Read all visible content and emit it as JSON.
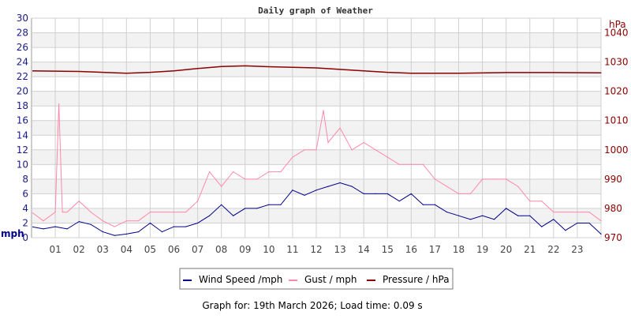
{
  "chart_data": {
    "type": "line",
    "title": "Daily graph of Weather",
    "footer": "Graph for: 19th March 2026; Load time: 0.09 s",
    "xlabel": "",
    "x_ticks": [
      "01",
      "02",
      "03",
      "04",
      "05",
      "06",
      "07",
      "08",
      "09",
      "10",
      "11",
      "12",
      "13",
      "14",
      "15",
      "16",
      "17",
      "18",
      "19",
      "20",
      "21",
      "22",
      "23"
    ],
    "xlim": [
      0,
      24
    ],
    "y_left": {
      "label": "mph",
      "lim": [
        0,
        30
      ],
      "ticks": [
        "0",
        "2",
        "4",
        "6",
        "8",
        "10",
        "12",
        "14",
        "16",
        "18",
        "20",
        "22",
        "24",
        "26",
        "28",
        "30"
      ]
    },
    "y_right": {
      "label": "hPa",
      "lim": [
        970,
        1045
      ],
      "ticks": [
        "970",
        "980",
        "990",
        "1000",
        "1010",
        "1020",
        "1030",
        "1040"
      ]
    },
    "grid": true,
    "legend": {
      "placement": "bottom",
      "entries": [
        "Wind Speed /mph",
        "Gust / mph",
        "Pressure / hPa"
      ]
    },
    "colors": {
      "wind": "#00008b",
      "gust": "#ff88aa",
      "pressure": "#8b0000",
      "band": "#f2f2f2",
      "grid": "#d0d0d0"
    },
    "series": [
      {
        "name": "Wind Speed /mph",
        "axis": "left",
        "x": [
          0,
          0.5,
          1,
          1.5,
          2,
          2.5,
          3,
          3.5,
          4,
          4.5,
          5,
          5.5,
          6,
          6.5,
          7,
          7.5,
          8,
          8.5,
          9,
          9.5,
          10,
          10.5,
          11,
          11.5,
          12,
          12.5,
          13,
          13.5,
          14,
          14.5,
          15,
          15.5,
          16,
          16.5,
          17,
          17.5,
          18,
          18.5,
          19,
          19.5,
          20,
          20.5,
          21,
          21.5,
          22,
          22.5,
          23,
          23.5,
          24
        ],
        "y": [
          1.5,
          1.2,
          1.5,
          1.2,
          2.2,
          1.8,
          0.8,
          0.3,
          0.5,
          0.8,
          2.0,
          0.8,
          1.5,
          1.5,
          2.0,
          3.0,
          4.5,
          3.0,
          4.0,
          4.0,
          4.5,
          4.5,
          6.5,
          5.8,
          6.5,
          7.0,
          7.5,
          7.0,
          6.0,
          6.0,
          6.0,
          5.0,
          6.0,
          4.5,
          4.5,
          3.5,
          3.0,
          2.5,
          3.0,
          2.5,
          4.0,
          3.0,
          3.0,
          1.5,
          2.5,
          1.0,
          2.0,
          2.0,
          0.5
        ]
      },
      {
        "name": "Gust / mph",
        "axis": "left",
        "x": [
          0,
          0.5,
          1,
          1.15,
          1.3,
          1.5,
          2,
          2.5,
          3,
          3.5,
          4,
          4.5,
          5,
          5.5,
          6,
          6.5,
          7,
          7.5,
          8,
          8.5,
          9,
          9.5,
          10,
          10.5,
          11,
          11.5,
          12,
          12.3,
          12.5,
          13,
          13.5,
          14,
          14.5,
          15,
          15.5,
          16,
          16.5,
          17,
          17.5,
          18,
          18.5,
          19,
          19.5,
          20,
          20.5,
          21,
          21.5,
          22,
          22.5,
          23,
          23.5,
          24
        ],
        "y": [
          3.5,
          2.3,
          3.5,
          18.3,
          3.5,
          3.5,
          5.0,
          3.5,
          2.3,
          1.5,
          2.3,
          2.3,
          3.5,
          3.5,
          3.5,
          3.5,
          5.0,
          9.0,
          7.0,
          9.0,
          8.0,
          8.0,
          9.0,
          9.0,
          11.0,
          12.0,
          12.0,
          17.4,
          13.0,
          15.0,
          12.0,
          13.0,
          12.0,
          11.0,
          10.0,
          10.0,
          10.0,
          8.0,
          7.0,
          6.0,
          6.0,
          8.0,
          8.0,
          8.0,
          7.0,
          5.0,
          5.0,
          3.5,
          3.5,
          3.5,
          3.5,
          2.3
        ]
      },
      {
        "name": "Pressure / hPa",
        "axis": "right",
        "x": [
          0,
          2,
          4,
          5,
          6,
          7,
          8,
          9,
          10,
          11,
          12,
          13,
          14,
          15,
          16,
          18,
          20,
          22,
          24
        ],
        "y": [
          1027.0,
          1026.8,
          1026.2,
          1026.5,
          1027.0,
          1027.8,
          1028.5,
          1028.7,
          1028.4,
          1028.2,
          1028.0,
          1027.5,
          1027.0,
          1026.5,
          1026.2,
          1026.2,
          1026.4,
          1026.4,
          1026.3
        ]
      }
    ]
  }
}
